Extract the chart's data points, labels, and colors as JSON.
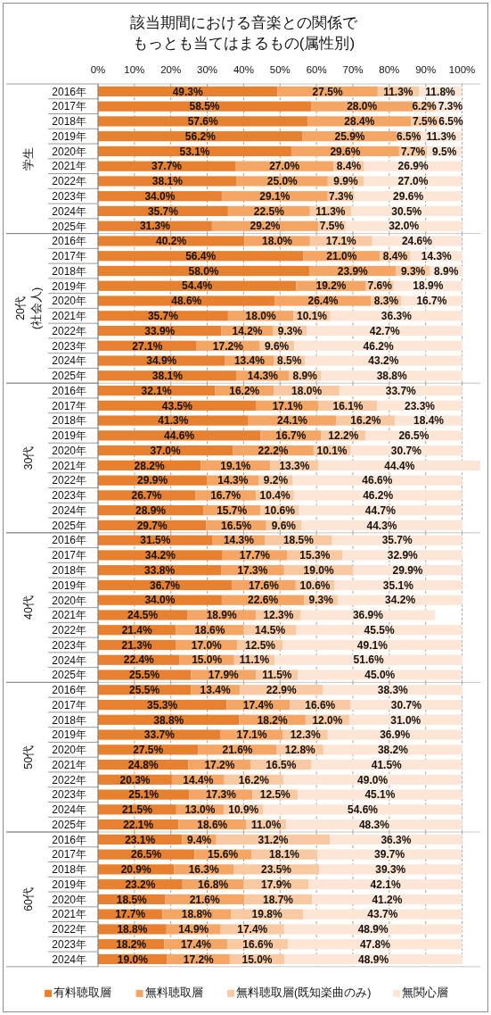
{
  "chart_data": [
    {
      "type": "bar",
      "orientation": "horizontal",
      "stacked": true,
      "title": "該当期間における音楽との関係でもっとも当てはまるもの(属性別)",
      "ylabel": "学生",
      "categories": [
        "2016年",
        "2017年",
        "2018年",
        "2019年",
        "2020年",
        "2021年",
        "2022年",
        "2023年",
        "2024年",
        "2025年"
      ],
      "xlim": [
        0,
        105
      ],
      "xticks": [
        {
          "value": 0,
          "label": "0%"
        },
        {
          "value": 10,
          "label": "10%"
        },
        {
          "value": 20,
          "label": "20%"
        },
        {
          "value": 30,
          "label": "30%"
        },
        {
          "value": 40,
          "label": "40%"
        },
        {
          "value": 50,
          "label": "50%"
        },
        {
          "value": 60,
          "label": "60%"
        },
        {
          "value": 70,
          "label": "70%"
        },
        {
          "value": 80,
          "label": "80%"
        },
        {
          "value": 90,
          "label": "90%"
        },
        {
          "value": 100,
          "label": "100%"
        }
      ],
      "grid": "x",
      "series": [
        {
          "color": "#e8812f",
          "values": [
            49.3,
            58.5,
            57.6,
            56.2,
            53.1,
            37.7,
            38.1,
            34.0,
            35.7,
            31.3
          ],
          "value_labels": [
            "49.3%",
            "58.5%",
            "57.6%",
            "56.2%",
            "53.1%",
            "37.7%",
            "38.1%",
            "34.0%",
            "35.7%",
            "31.3%"
          ]
        },
        {
          "color": "#f5a564",
          "values": [
            27.5,
            28.0,
            28.4,
            25.9,
            29.6,
            27.0,
            25.0,
            29.1,
            22.5,
            29.2
          ],
          "value_labels": [
            "27.5%",
            "28.0%",
            "28.4%",
            "25.9%",
            "29.6%",
            "27.0%",
            "25.0%",
            "29.1%",
            "22.5%",
            "29.2%"
          ]
        },
        {
          "color": "#f9c9a1",
          "values": [
            11.3,
            6.2,
            7.5,
            6.5,
            7.7,
            8.4,
            9.9,
            7.3,
            11.3,
            7.5
          ],
          "value_labels": [
            "11.3%",
            "6.2%",
            "7.5%",
            "6.5%",
            "7.7%",
            "8.4%",
            "9.9%",
            "7.3%",
            "11.3%",
            "7.5%"
          ]
        },
        {
          "color": "#fde6d5",
          "values": [
            11.8,
            7.3,
            6.5,
            11.3,
            9.5,
            26.9,
            27.0,
            29.6,
            30.5,
            32.0
          ],
          "value_labels": [
            "11.8%",
            "7.3%",
            "6.5%",
            "11.3%",
            "9.5%",
            "26.9%",
            "27.0%",
            "29.6%",
            "30.5%",
            "32.0%"
          ]
        }
      ]
    },
    {
      "type": "bar",
      "orientation": "horizontal",
      "stacked": true,
      "ylabel": "20代(社会人)",
      "categories": [
        "2016年",
        "2017年",
        "2018年",
        "2019年",
        "2020年",
        "2021年",
        "2022年",
        "2023年",
        "2024年",
        "2025年"
      ],
      "xlim": [
        0,
        105
      ],
      "xticks": [
        0,
        10,
        20,
        30,
        40,
        50,
        60,
        70,
        80,
        90,
        100
      ],
      "grid": "x",
      "tick_labels": "y",
      "series": [
        {
          "color": "#e8812f",
          "values": [
            40.2,
            56.4,
            58.0,
            54.4,
            48.6,
            35.7,
            33.9,
            27.1,
            34.9,
            38.1
          ],
          "value_labels": [
            "40.2%",
            "56.4%",
            "58.0%",
            "54.4%",
            "48.6%",
            "35.7%",
            "33.9%",
            "27.1%",
            "34.9%",
            "38.1%"
          ]
        },
        {
          "color": "#f5a564",
          "values": [
            18.0,
            21.0,
            23.9,
            19.2,
            26.4,
            18.0,
            14.2,
            17.2,
            13.4,
            14.3
          ],
          "value_labels": [
            "18.0%",
            "21.0%",
            "23.9%",
            "19.2%",
            "26.4%",
            "18.0%",
            "14.2%",
            "17.2%",
            "13.4%",
            "14.3%"
          ]
        },
        {
          "color": "#f9c9a1",
          "values": [
            17.1,
            8.4,
            9.3,
            7.6,
            8.3,
            10.1,
            9.3,
            9.6,
            8.5,
            8.9
          ],
          "value_labels": [
            "17.1%",
            "8.4%",
            "9.3%",
            "7.6%",
            "8.3%",
            "10.1%",
            "9.3%",
            "9.6%",
            "8.5%",
            "8.9%"
          ]
        },
        {
          "color": "#fde6d5",
          "values": [
            24.6,
            14.3,
            8.9,
            18.9,
            16.7,
            36.3,
            42.7,
            46.2,
            43.2,
            38.8
          ],
          "value_labels": [
            "24.6%",
            "14.3%",
            "8.9%",
            "18.9%",
            "16.7%",
            "36.3%",
            "42.7%",
            "46.2%",
            "43.2%",
            "38.8%"
          ]
        }
      ]
    },
    {
      "type": "bar",
      "orientation": "horizontal",
      "stacked": true,
      "ylabel": "30代",
      "categories": [
        "2016年",
        "2017年",
        "2018年",
        "2019年",
        "2020年",
        "2021年",
        "2022年",
        "2023年",
        "2024年",
        "2025年"
      ],
      "xlim": [
        0,
        105
      ],
      "xticks": [
        0,
        10,
        20,
        30,
        40,
        50,
        60,
        70,
        80,
        90,
        100
      ],
      "grid": "x",
      "tick_labels": "y",
      "series": [
        {
          "color": "#e8812f",
          "values": [
            32.1,
            43.5,
            41.3,
            44.6,
            37.0,
            28.2,
            29.9,
            26.7,
            28.9,
            29.7
          ],
          "value_labels": [
            "32.1%",
            "43.5%",
            "41.3%",
            "44.6%",
            "37.0%",
            "28.2%",
            "29.9%",
            "26.7%",
            "28.9%",
            "29.7%"
          ]
        },
        {
          "color": "#f5a564",
          "values": [
            16.2,
            17.1,
            24.1,
            16.7,
            22.2,
            19.1,
            14.3,
            16.7,
            15.7,
            16.5
          ],
          "value_labels": [
            "16.2%",
            "17.1%",
            "24.1%",
            "16.7%",
            "22.2%",
            "19.1%",
            "14.3%",
            "16.7%",
            "15.7%",
            "16.5%"
          ]
        },
        {
          "color": "#f9c9a1",
          "values": [
            18.0,
            16.1,
            16.2,
            12.2,
            10.1,
            13.3,
            9.2,
            10.4,
            10.6,
            9.6
          ],
          "value_labels": [
            "18.0%",
            "16.1%",
            "16.2%",
            "12.2%",
            "10.1%",
            "13.3%",
            "9.2%",
            "10.4%",
            "10.6%",
            "9.6%"
          ]
        },
        {
          "color": "#fde6d5",
          "values": [
            33.7,
            23.3,
            18.4,
            26.5,
            30.7,
            44.4,
            46.6,
            46.2,
            44.7,
            44.3
          ],
          "value_labels": [
            "33.7%",
            "23.3%",
            "18.4%",
            "26.5%",
            "30.7%",
            "44.4%",
            "46.6%",
            "46.2%",
            "44.7%",
            "44.3%"
          ]
        }
      ]
    },
    {
      "type": "bar",
      "orientation": "horizontal",
      "stacked": true,
      "ylabel": "40代",
      "categories": [
        "2016年",
        "2017年",
        "2018年",
        "2019年",
        "2020年",
        "2021年",
        "2022年",
        "2023年",
        "2024年",
        "2025年"
      ],
      "xlim": [
        0,
        105
      ],
      "xticks": [
        0,
        10,
        20,
        30,
        40,
        50,
        60,
        70,
        80,
        90,
        100
      ],
      "grid": "x",
      "tick_labels": "y",
      "series": [
        {
          "color": "#e8812f",
          "values": [
            31.5,
            34.2,
            33.8,
            36.7,
            34.0,
            24.5,
            21.4,
            21.3,
            22.4,
            25.5
          ],
          "value_labels": [
            "31.5%",
            "34.2%",
            "33.8%",
            "36.7%",
            "34.0%",
            "24.5%",
            "21.4%",
            "21.3%",
            "22.4%",
            "25.5%"
          ]
        },
        {
          "color": "#f5a564",
          "values": [
            14.3,
            17.7,
            17.3,
            17.6,
            22.6,
            18.9,
            18.6,
            17.0,
            15.0,
            17.9
          ],
          "value_labels": [
            "14.3%",
            "17.7%",
            "17.3%",
            "17.6%",
            "22.6%",
            "18.9%",
            "18.6%",
            "17.0%",
            "15.0%",
            "17.9%"
          ]
        },
        {
          "color": "#f9c9a1",
          "values": [
            18.5,
            15.3,
            19.0,
            10.6,
            9.3,
            12.3,
            14.5,
            12.5,
            11.1,
            11.5
          ],
          "value_labels": [
            "18.5%",
            "15.3%",
            "19.0%",
            "10.6%",
            "9.3%",
            "12.3%",
            "14.5%",
            "12.5%",
            "11.1%",
            "11.5%"
          ]
        },
        {
          "color": "#fde6d5",
          "values": [
            35.7,
            32.9,
            29.9,
            35.1,
            34.2,
            36.9,
            45.5,
            49.1,
            51.6,
            45.0
          ],
          "value_labels": [
            "35.7%",
            "32.9%",
            "29.9%",
            "35.1%",
            "34.2%",
            "36.9%",
            "45.5%",
            "49.1%",
            "51.6%",
            "45.0%"
          ]
        }
      ]
    },
    {
      "type": "bar",
      "orientation": "horizontal",
      "stacked": true,
      "ylabel": "50代",
      "categories": [
        "2016年",
        "2017年",
        "2018年",
        "2019年",
        "2020年",
        "2021年",
        "2022年",
        "2023年",
        "2024年",
        "2025年"
      ],
      "xlim": [
        0,
        105
      ],
      "xticks": [
        0,
        10,
        20,
        30,
        40,
        50,
        60,
        70,
        80,
        90,
        100
      ],
      "grid": "x",
      "tick_labels": "y",
      "series": [
        {
          "color": "#e8812f",
          "values": [
            25.5,
            35.3,
            38.8,
            33.7,
            27.5,
            24.8,
            20.3,
            25.1,
            21.5,
            22.1
          ],
          "value_labels": [
            "25.5%",
            "35.3%",
            "38.8%",
            "33.7%",
            "27.5%",
            "24.8%",
            "20.3%",
            "25.1%",
            "21.5%",
            "22.1%"
          ]
        },
        {
          "color": "#f5a564",
          "values": [
            13.4,
            17.4,
            18.2,
            17.1,
            21.6,
            17.2,
            14.4,
            17.3,
            13.0,
            18.6
          ],
          "value_labels": [
            "13.4%",
            "17.4%",
            "18.2%",
            "17.1%",
            "21.6%",
            "17.2%",
            "14.4%",
            "17.3%",
            "13.0%",
            "18.6%"
          ]
        },
        {
          "color": "#f9c9a1",
          "values": [
            22.9,
            16.6,
            12.0,
            12.3,
            12.8,
            16.5,
            16.2,
            12.5,
            10.9,
            11.0
          ],
          "value_labels": [
            "22.9%",
            "16.6%",
            "12.0%",
            "12.3%",
            "12.8%",
            "16.5%",
            "16.2%",
            "12.5%",
            "10.9%",
            "11.0%"
          ]
        },
        {
          "color": "#fde6d5",
          "values": [
            38.3,
            30.7,
            31.0,
            36.9,
            38.2,
            41.5,
            49.0,
            45.1,
            54.6,
            48.3
          ],
          "value_labels": [
            "38.3%",
            "30.7%",
            "31.0%",
            "36.9%",
            "38.2%",
            "41.5%",
            "49.0%",
            "45.1%",
            "54.6%",
            "48.3%"
          ]
        }
      ]
    },
    {
      "type": "bar",
      "orientation": "horizontal",
      "stacked": true,
      "ylabel": "60代",
      "categories": [
        "2016年",
        "2017年",
        "2018年",
        "2019年",
        "2020年",
        "2021年",
        "2022年",
        "2023年",
        "2024年"
      ],
      "xlim": [
        0,
        105
      ],
      "xticks": [
        0,
        10,
        20,
        30,
        40,
        50,
        60,
        70,
        80,
        90,
        100
      ],
      "grid": "x",
      "tick_labels": "y",
      "legend": "bottom",
      "series": [
        {
          "name": "有料聴取層",
          "color": "#e8812f",
          "values": [
            23.1,
            26.5,
            20.9,
            23.2,
            18.5,
            17.7,
            18.8,
            18.2,
            19.0
          ],
          "value_labels": [
            "23.1%",
            "26.5%",
            "20.9%",
            "23.2%",
            "18.5%",
            "17.7%",
            "18.8%",
            "18.2%",
            "19.0%"
          ]
        },
        {
          "name": "無料聴取層",
          "color": "#f5a564",
          "values": [
            9.4,
            15.6,
            16.3,
            16.8,
            21.6,
            18.8,
            14.9,
            17.4,
            17.2
          ],
          "value_labels": [
            "9.4%",
            "15.6%",
            "16.3%",
            "16.8%",
            "21.6%",
            "18.8%",
            "14.9%",
            "17.4%",
            "17.2%"
          ]
        },
        {
          "name": "無料聴取層(既知楽曲のみ)",
          "color": "#f9c9a1",
          "values": [
            31.2,
            18.1,
            23.5,
            17.9,
            18.7,
            19.8,
            17.4,
            16.6,
            15.0
          ],
          "value_labels": [
            "31.2%",
            "18.1%",
            "23.5%",
            "17.9%",
            "18.7%",
            "19.8%",
            "17.4%",
            "16.6%",
            "15.0%"
          ]
        },
        {
          "name": "無関心層",
          "color": "#fde6d5",
          "values": [
            36.3,
            39.7,
            39.3,
            42.1,
            41.2,
            43.7,
            48.9,
            47.8,
            48.9
          ],
          "value_labels": [
            "36.3%",
            "39.7%",
            "39.3%",
            "42.1%",
            "41.2%",
            "43.7%",
            "48.9%",
            "47.8%",
            "48.9%"
          ]
        }
      ]
    }
  ]
}
